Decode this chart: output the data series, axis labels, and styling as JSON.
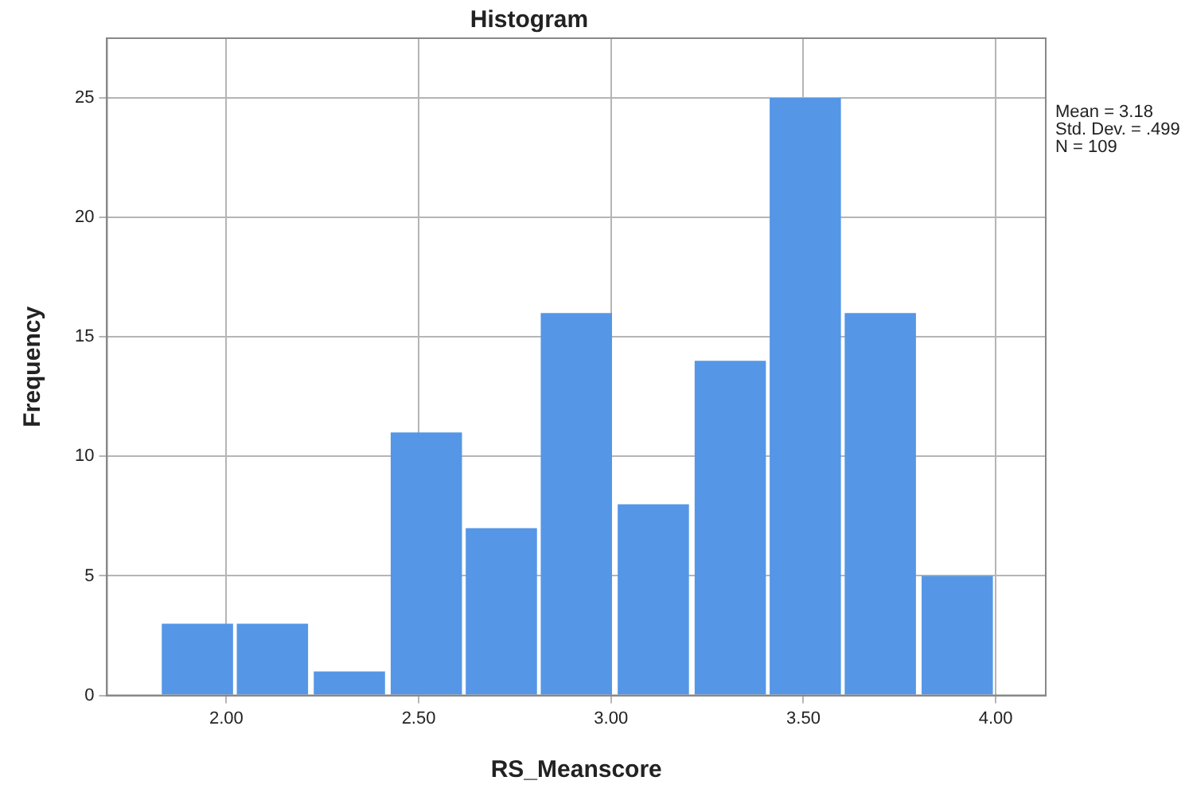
{
  "chart_data": {
    "type": "histogram",
    "title": "Histogram",
    "xlabel": "RS_Meanscore",
    "ylabel": "Frequency",
    "bins": [
      1.83,
      2.02,
      2.22,
      2.42,
      2.62,
      2.81,
      3.01,
      3.21,
      3.41,
      3.6,
      3.8,
      4.0
    ],
    "values": [
      3,
      3,
      1,
      11,
      7,
      16,
      8,
      14,
      25,
      16,
      5
    ],
    "color": "#5596e6",
    "xlim": [
      1.69,
      4.13
    ],
    "xticks": [
      {
        "value": 2,
        "label": "2.00"
      },
      {
        "value": 2.5,
        "label": "2.50"
      },
      {
        "value": 3,
        "label": "3.00"
      },
      {
        "value": 3.5,
        "label": "3.50"
      },
      {
        "value": 4,
        "label": "4.00"
      }
    ],
    "ylim": [
      0,
      27.5
    ],
    "yticks": [
      0,
      5,
      10,
      15,
      20,
      25
    ],
    "grid": true,
    "legend": false,
    "annotations": [
      "Mean = 3.18",
      "Std. Dev. = .499",
      "N = 109"
    ]
  }
}
